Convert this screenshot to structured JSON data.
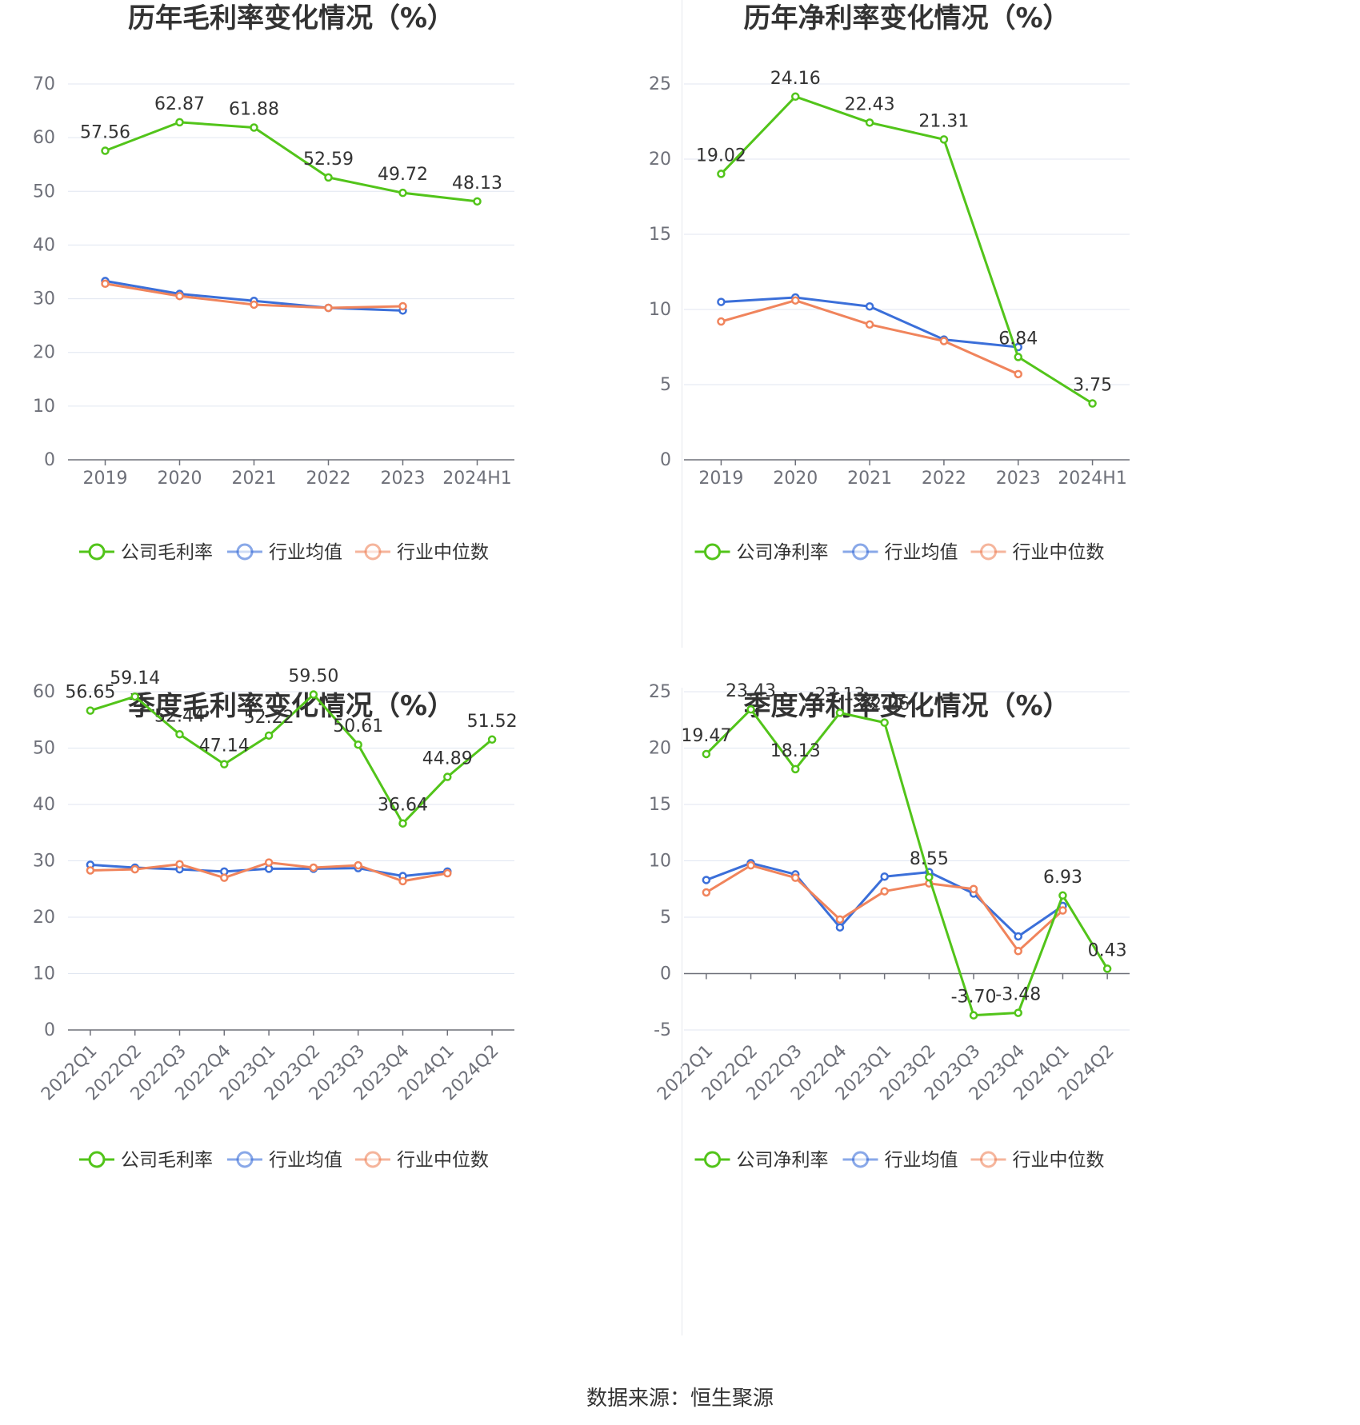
{
  "colors": {
    "company": "#52c41a",
    "industry_avg": "#3b6fd9",
    "industry_median": "#f0845c",
    "grid": "#e0e6f1",
    "axis": "#6e7079"
  },
  "source": "数据来源：恒生聚源",
  "chart_data": [
    {
      "type": "line",
      "title": "历年毛利率变化情况（%）",
      "categories": [
        "2019",
        "2020",
        "2021",
        "2022",
        "2023",
        "2024H1"
      ],
      "ylim": [
        0,
        70
      ],
      "yticks": [
        0,
        10,
        20,
        30,
        40,
        50,
        60,
        70
      ],
      "legend_position": "bottom",
      "series": [
        {
          "name": "公司毛利率",
          "color_key": "company",
          "show_labels": true,
          "values": [
            57.56,
            62.87,
            61.88,
            52.59,
            49.72,
            48.13
          ]
        },
        {
          "name": "行业均值",
          "color_key": "industry_avg",
          "show_labels": false,
          "values": [
            33.3,
            30.9,
            29.6,
            28.3,
            27.8,
            null
          ]
        },
        {
          "name": "行业中位数",
          "color_key": "industry_median",
          "show_labels": false,
          "values": [
            32.8,
            30.5,
            28.9,
            28.3,
            28.6,
            null
          ]
        }
      ]
    },
    {
      "type": "line",
      "title": "历年净利率变化情况（%）",
      "categories": [
        "2019",
        "2020",
        "2021",
        "2022",
        "2023",
        "2024H1"
      ],
      "ylim": [
        0,
        25
      ],
      "yticks": [
        0,
        5,
        10,
        15,
        20,
        25
      ],
      "legend_position": "bottom",
      "series": [
        {
          "name": "公司净利率",
          "color_key": "company",
          "show_labels": true,
          "values": [
            19.02,
            24.16,
            22.43,
            21.31,
            6.84,
            3.75
          ]
        },
        {
          "name": "行业均值",
          "color_key": "industry_avg",
          "show_labels": false,
          "values": [
            10.5,
            10.8,
            10.2,
            8.0,
            7.5,
            null
          ]
        },
        {
          "name": "行业中位数",
          "color_key": "industry_median",
          "show_labels": false,
          "values": [
            9.2,
            10.6,
            9.0,
            7.9,
            5.7,
            null
          ]
        }
      ]
    },
    {
      "type": "line",
      "title": "季度毛利率变化情况（%）",
      "categories": [
        "2022Q1",
        "2022Q2",
        "2022Q3",
        "2022Q4",
        "2023Q1",
        "2023Q2",
        "2023Q3",
        "2023Q4",
        "2024Q1",
        "2024Q2"
      ],
      "ylim": [
        0,
        60
      ],
      "yticks": [
        0,
        10,
        20,
        30,
        40,
        50,
        60
      ],
      "legend_position": "bottom",
      "series": [
        {
          "name": "公司毛利率",
          "color_key": "company",
          "show_labels": true,
          "values": [
            56.65,
            59.14,
            52.44,
            47.14,
            52.22,
            59.5,
            50.61,
            36.64,
            44.89,
            51.52
          ]
        },
        {
          "name": "行业均值",
          "color_key": "industry_avg",
          "show_labels": false,
          "values": [
            29.3,
            28.8,
            28.5,
            28.1,
            28.6,
            28.6,
            28.7,
            27.3,
            28.1,
            null
          ]
        },
        {
          "name": "行业中位数",
          "color_key": "industry_median",
          "show_labels": false,
          "values": [
            28.3,
            28.5,
            29.4,
            27.0,
            29.7,
            28.8,
            29.2,
            26.4,
            27.8,
            null
          ]
        }
      ]
    },
    {
      "type": "line",
      "title": "季度净利率变化情况（%）",
      "categories": [
        "2022Q1",
        "2022Q2",
        "2022Q3",
        "2022Q4",
        "2023Q1",
        "2023Q2",
        "2023Q3",
        "2023Q4",
        "2024Q1",
        "2024Q2"
      ],
      "ylim": [
        -5,
        25
      ],
      "yticks": [
        -5,
        0,
        5,
        10,
        15,
        20,
        25
      ],
      "legend_position": "bottom",
      "series": [
        {
          "name": "公司净利率",
          "color_key": "company",
          "show_labels": true,
          "values": [
            19.47,
            23.43,
            18.13,
            23.13,
            22.26,
            8.55,
            -3.7,
            -3.48,
            6.93,
            0.43
          ]
        },
        {
          "name": "行业均值",
          "color_key": "industry_avg",
          "show_labels": false,
          "values": [
            8.3,
            9.8,
            8.8,
            4.1,
            8.6,
            9.0,
            7.1,
            3.3,
            6.0,
            null
          ]
        },
        {
          "name": "行业中位数",
          "color_key": "industry_median",
          "show_labels": false,
          "values": [
            7.2,
            9.6,
            8.5,
            4.8,
            7.3,
            8.0,
            7.5,
            2.0,
            5.6,
            null
          ]
        }
      ]
    }
  ]
}
